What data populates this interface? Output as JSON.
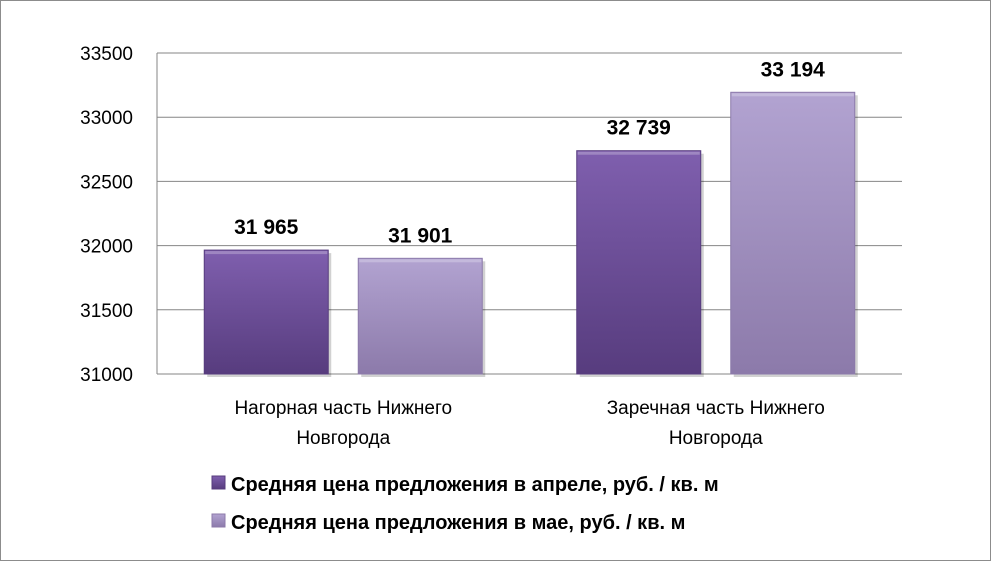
{
  "chart_data": {
    "type": "bar",
    "title": "",
    "xlabel": "",
    "ylabel": "",
    "categories": [
      [
        "Нагорная часть Нижнего",
        "Новгорода"
      ],
      [
        "Заречная часть Нижнего",
        "Новгорода"
      ]
    ],
    "series": [
      {
        "name": "Средняя цена предложения в апреле, руб. / кв. м",
        "values": [
          31965,
          32739
        ],
        "labels": [
          "31 965",
          "32 739"
        ],
        "color": "#6a4c93",
        "color_light": "#7f5fae",
        "color_dark": "#573c7e"
      },
      {
        "name": "Средняя цена предложения в мае, руб. / кв. м",
        "values": [
          31901,
          33194
        ],
        "labels": [
          "31 901",
          "33 194"
        ],
        "color": "#a392c4",
        "color_light": "#b2a3d1",
        "color_dark": "#8c7aaa"
      }
    ],
    "ylim": [
      31000,
      33500
    ],
    "yticks": [
      31000,
      31500,
      32000,
      32500,
      33000,
      33500
    ],
    "grid": true,
    "legend_position": "bottom"
  }
}
